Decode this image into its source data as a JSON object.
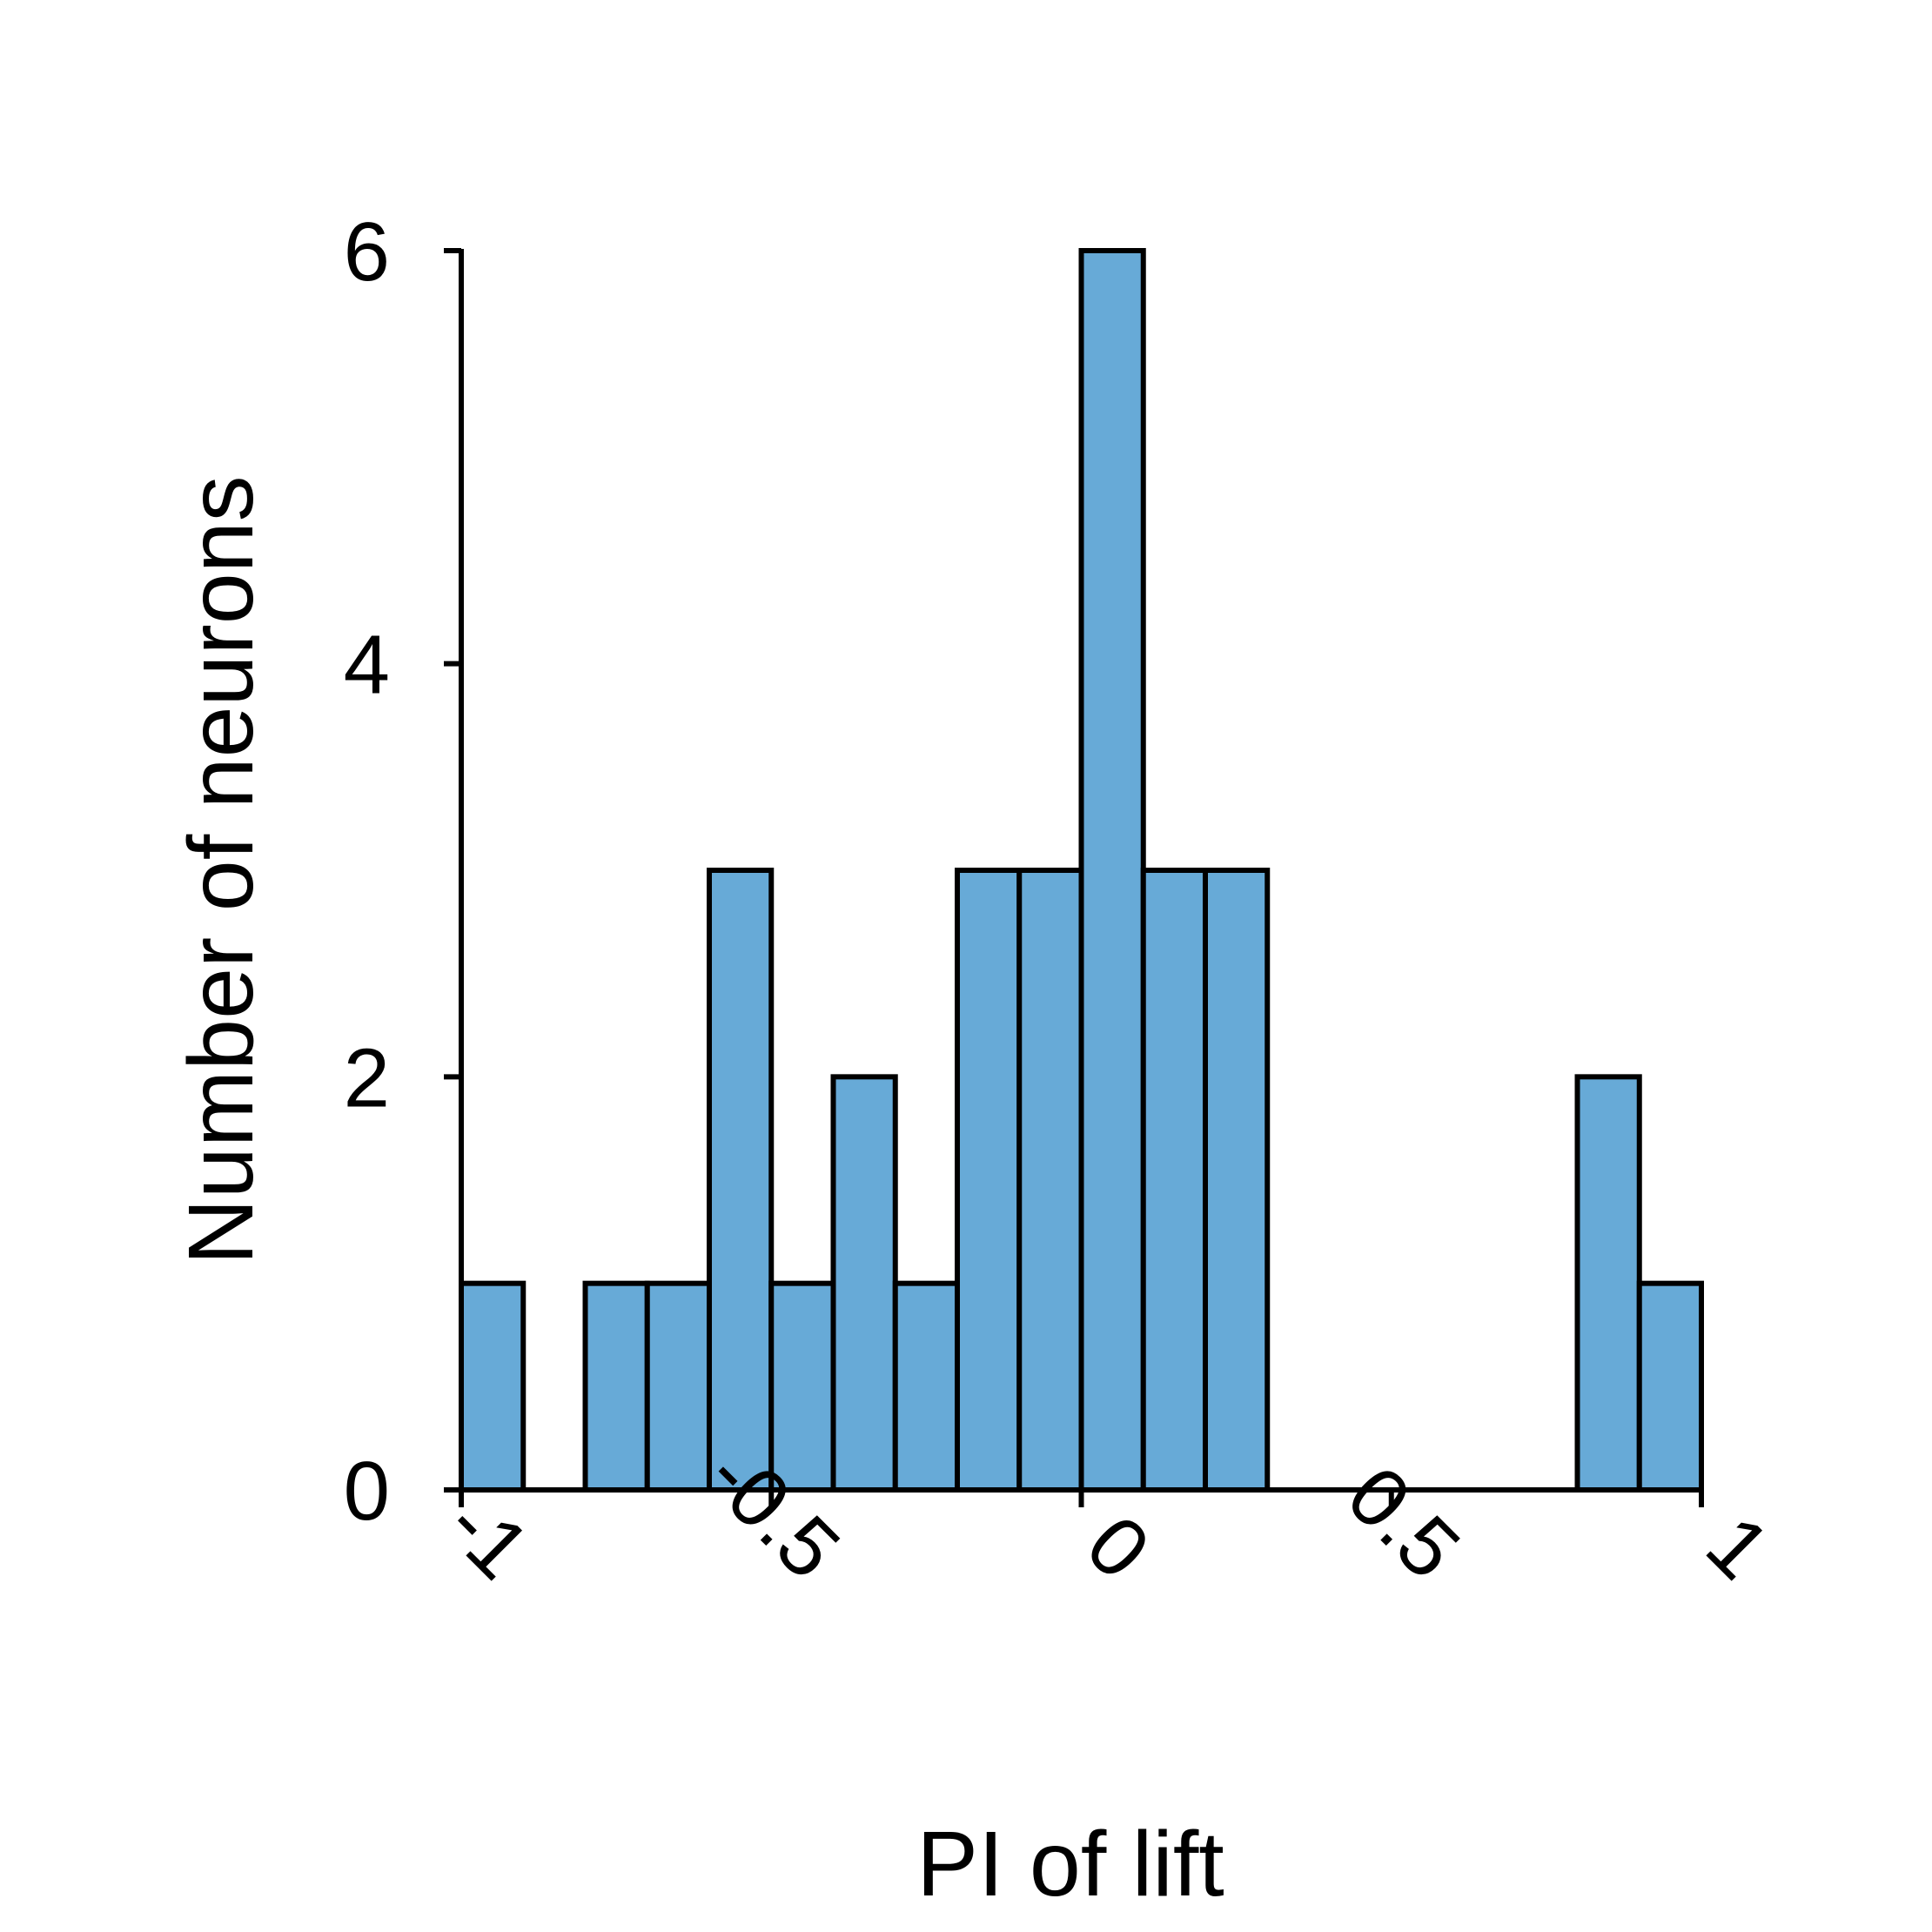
{
  "chart_data": {
    "type": "bar",
    "bin_edges": [
      -1,
      -0.9,
      -0.8,
      -0.7,
      -0.6,
      -0.5,
      -0.4,
      -0.3,
      -0.2,
      -0.1,
      0,
      0.1,
      0.2,
      0.3,
      0.4,
      0.5,
      0.6,
      0.7,
      0.8,
      0.9,
      1
    ],
    "values": [
      1,
      0,
      1,
      1,
      3,
      1,
      2,
      1,
      3,
      3,
      6,
      3,
      3,
      0,
      0,
      0,
      0,
      0,
      2,
      1
    ],
    "title": "",
    "xlabel": "PI of lift",
    "ylabel": "Number of neurons",
    "xlim": [
      -1,
      1
    ],
    "ylim": [
      0,
      6
    ],
    "xticks": [
      -1,
      -0.5,
      0,
      0.5,
      1
    ],
    "xtick_labels": [
      "-1",
      "-0.5",
      "0",
      "0.5",
      "1"
    ],
    "yticks": [
      0,
      2,
      4,
      6
    ],
    "ytick_labels": [
      "0",
      "2",
      "4",
      "6"
    ],
    "xtick_rotation": 45,
    "grid": false,
    "legend": "none",
    "bar_color": "#67aad7",
    "edge_color": "#000000"
  }
}
